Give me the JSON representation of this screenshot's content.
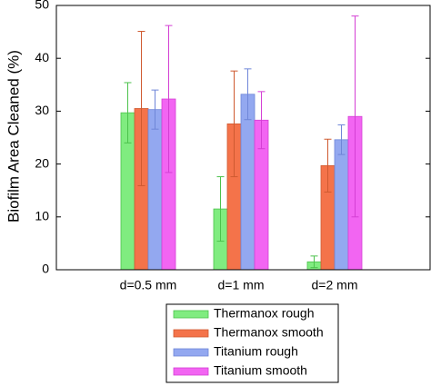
{
  "chart_data": {
    "type": "bar",
    "y_label": "Biofilm Area Cleaned (%)",
    "categories": [
      "d=0.5 mm",
      "d=1 mm",
      "d=2 mm"
    ],
    "series": [
      {
        "name": "Thermanox rough",
        "color": "#80ec80",
        "error_color": "#4cc24c",
        "values": [
          29.7,
          11.5,
          1.5
        ],
        "errors": [
          5.7,
          6.1,
          1.1
        ]
      },
      {
        "name": "Thermanox smooth",
        "color": "#f4734a",
        "error_color": "#cf5a30",
        "values": [
          30.5,
          27.6,
          19.7
        ],
        "errors": [
          14.6,
          10,
          5
        ]
      },
      {
        "name": "Titanium rough",
        "color": "#93a8f0",
        "error_color": "#6f86d8",
        "values": [
          30.3,
          33.2,
          24.6
        ],
        "errors": [
          3.7,
          4.8,
          2.8
        ]
      },
      {
        "name": "Titanium smooth",
        "color": "#f265f2",
        "error_color": "#d43fd4",
        "values": [
          32.3,
          28.3,
          29
        ],
        "errors": [
          13.9,
          5.4,
          19
        ]
      }
    ],
    "ylim": [
      0,
      50
    ],
    "yticks": [
      0,
      10,
      20,
      30,
      40,
      50
    ],
    "legend": "bottom"
  }
}
